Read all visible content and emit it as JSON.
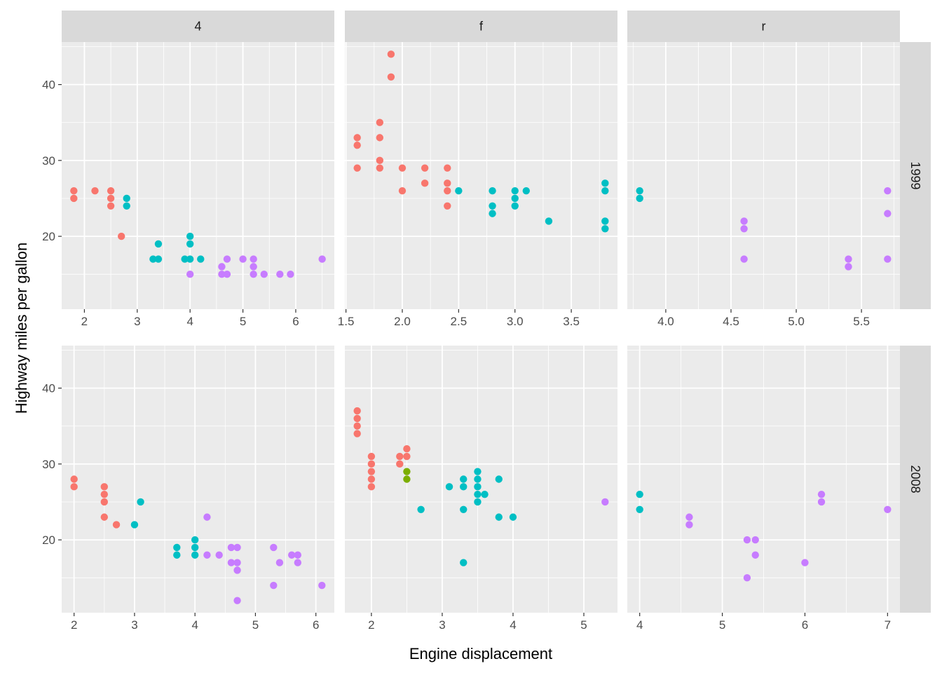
{
  "chart_data": {
    "type": "scatter",
    "xlabel": "Engine displacement",
    "ylabel": "Highway miles per gallon",
    "facet_cols": [
      "4",
      "f",
      "r"
    ],
    "facet_rows": [
      "1999",
      "2008"
    ],
    "ylim": [
      10.4,
      45.6
    ],
    "y_ticks": [
      20,
      30,
      40
    ],
    "y_tick_labels": [
      "20",
      "30",
      "40"
    ],
    "colors": {
      "A": "#F8766D",
      "B": "#7CAE00",
      "C": "#00BFC4",
      "D": "#C77CFF"
    },
    "panels": [
      {
        "row": "1999",
        "col": "4",
        "xlim": [
          1.57,
          6.73
        ],
        "x_ticks": [
          2,
          3,
          4,
          5,
          6
        ],
        "x_tick_labels": [
          "2",
          "3",
          "4",
          "5",
          "6"
        ],
        "points": [
          {
            "x": 1.8,
            "y": 26,
            "g": "A"
          },
          {
            "x": 1.8,
            "y": 25,
            "g": "A"
          },
          {
            "x": 2.2,
            "y": 26,
            "g": "A"
          },
          {
            "x": 2.5,
            "y": 26,
            "g": "A"
          },
          {
            "x": 2.5,
            "y": 25,
            "g": "A"
          },
          {
            "x": 2.5,
            "y": 24,
            "g": "A"
          },
          {
            "x": 2.7,
            "y": 20,
            "g": "A"
          },
          {
            "x": 2.8,
            "y": 25,
            "g": "C"
          },
          {
            "x": 2.8,
            "y": 24,
            "g": "C"
          },
          {
            "x": 3.3,
            "y": 17,
            "g": "C"
          },
          {
            "x": 3.4,
            "y": 19,
            "g": "C"
          },
          {
            "x": 3.4,
            "y": 17,
            "g": "C"
          },
          {
            "x": 3.9,
            "y": 17,
            "g": "C"
          },
          {
            "x": 4.0,
            "y": 20,
            "g": "C"
          },
          {
            "x": 4.0,
            "y": 19,
            "g": "C"
          },
          {
            "x": 4.0,
            "y": 17,
            "g": "C"
          },
          {
            "x": 4.2,
            "y": 17,
            "g": "C"
          },
          {
            "x": 4.0,
            "y": 15,
            "g": "D"
          },
          {
            "x": 4.6,
            "y": 16,
            "g": "D"
          },
          {
            "x": 4.6,
            "y": 15,
            "g": "D"
          },
          {
            "x": 4.7,
            "y": 17,
            "g": "D"
          },
          {
            "x": 4.7,
            "y": 15,
            "g": "D"
          },
          {
            "x": 5.0,
            "y": 17,
            "g": "D"
          },
          {
            "x": 5.2,
            "y": 17,
            "g": "D"
          },
          {
            "x": 5.2,
            "y": 16,
            "g": "D"
          },
          {
            "x": 5.2,
            "y": 15,
            "g": "D"
          },
          {
            "x": 5.4,
            "y": 15,
            "g": "D"
          },
          {
            "x": 5.7,
            "y": 15,
            "g": "D"
          },
          {
            "x": 5.9,
            "y": 15,
            "g": "D"
          },
          {
            "x": 6.5,
            "y": 17,
            "g": "D"
          }
        ]
      },
      {
        "row": "1999",
        "col": "f",
        "xlim": [
          1.49,
          3.91
        ],
        "x_ticks": [
          1.5,
          2.0,
          2.5,
          3.0,
          3.5
        ],
        "x_tick_labels": [
          "1.5",
          "2.0",
          "2.5",
          "3.0",
          "3.5"
        ],
        "points": [
          {
            "x": 1.6,
            "y": 33,
            "g": "A"
          },
          {
            "x": 1.6,
            "y": 32,
            "g": "A"
          },
          {
            "x": 1.6,
            "y": 29,
            "g": "A"
          },
          {
            "x": 1.8,
            "y": 35,
            "g": "A"
          },
          {
            "x": 1.8,
            "y": 33,
            "g": "A"
          },
          {
            "x": 1.8,
            "y": 30,
            "g": "A"
          },
          {
            "x": 1.8,
            "y": 29,
            "g": "A"
          },
          {
            "x": 1.9,
            "y": 44,
            "g": "A"
          },
          {
            "x": 1.9,
            "y": 41,
            "g": "A"
          },
          {
            "x": 2.0,
            "y": 29,
            "g": "A"
          },
          {
            "x": 2.0,
            "y": 26,
            "g": "A"
          },
          {
            "x": 2.2,
            "y": 29,
            "g": "A"
          },
          {
            "x": 2.2,
            "y": 27,
            "g": "A"
          },
          {
            "x": 2.4,
            "y": 29,
            "g": "A"
          },
          {
            "x": 2.4,
            "y": 27,
            "g": "A"
          },
          {
            "x": 2.4,
            "y": 26,
            "g": "A"
          },
          {
            "x": 2.4,
            "y": 24,
            "g": "A"
          },
          {
            "x": 2.5,
            "y": 26,
            "g": "C"
          },
          {
            "x": 2.8,
            "y": 26,
            "g": "C"
          },
          {
            "x": 2.8,
            "y": 24,
            "g": "C"
          },
          {
            "x": 2.8,
            "y": 23,
            "g": "C"
          },
          {
            "x": 3.0,
            "y": 26,
            "g": "C"
          },
          {
            "x": 3.0,
            "y": 25,
            "g": "C"
          },
          {
            "x": 3.0,
            "y": 24,
            "g": "C"
          },
          {
            "x": 3.1,
            "y": 26,
            "g": "C"
          },
          {
            "x": 3.3,
            "y": 22,
            "g": "C"
          },
          {
            "x": 3.8,
            "y": 27,
            "g": "C"
          },
          {
            "x": 3.8,
            "y": 26,
            "g": "C"
          },
          {
            "x": 3.8,
            "y": 22,
            "g": "C"
          },
          {
            "x": 3.8,
            "y": 21,
            "g": "C"
          }
        ]
      },
      {
        "row": "1999",
        "col": "r",
        "xlim": [
          3.705,
          5.795
        ],
        "x_ticks": [
          4.0,
          4.5,
          5.0,
          5.5
        ],
        "x_tick_labels": [
          "4.0",
          "4.5",
          "5.0",
          "5.5"
        ],
        "points": [
          {
            "x": 3.8,
            "y": 26,
            "g": "C"
          },
          {
            "x": 3.8,
            "y": 25,
            "g": "C"
          },
          {
            "x": 4.6,
            "y": 22,
            "g": "D"
          },
          {
            "x": 4.6,
            "y": 21,
            "g": "D"
          },
          {
            "x": 4.6,
            "y": 17,
            "g": "D"
          },
          {
            "x": 5.4,
            "y": 17,
            "g": "D"
          },
          {
            "x": 5.4,
            "y": 16,
            "g": "D"
          },
          {
            "x": 5.7,
            "y": 26,
            "g": "D"
          },
          {
            "x": 5.7,
            "y": 23,
            "g": "D"
          },
          {
            "x": 5.7,
            "y": 17,
            "g": "D"
          }
        ]
      },
      {
        "row": "2008",
        "col": "4",
        "xlim": [
          1.795,
          6.305
        ],
        "x_ticks": [
          2,
          3,
          4,
          5,
          6
        ],
        "x_tick_labels": [
          "2",
          "3",
          "4",
          "5",
          "6"
        ],
        "points": [
          {
            "x": 2.0,
            "y": 28,
            "g": "A"
          },
          {
            "x": 2.0,
            "y": 27,
            "g": "A"
          },
          {
            "x": 2.5,
            "y": 27,
            "g": "A"
          },
          {
            "x": 2.5,
            "y": 26,
            "g": "A"
          },
          {
            "x": 2.5,
            "y": 25,
            "g": "A"
          },
          {
            "x": 2.5,
            "y": 23,
            "g": "A"
          },
          {
            "x": 2.7,
            "y": 22,
            "g": "A"
          },
          {
            "x": 3.0,
            "y": 22,
            "g": "C"
          },
          {
            "x": 3.1,
            "y": 25,
            "g": "C"
          },
          {
            "x": 3.7,
            "y": 19,
            "g": "C"
          },
          {
            "x": 3.7,
            "y": 18,
            "g": "C"
          },
          {
            "x": 4.0,
            "y": 20,
            "g": "C"
          },
          {
            "x": 4.0,
            "y": 19,
            "g": "C"
          },
          {
            "x": 4.0,
            "y": 18,
            "g": "C"
          },
          {
            "x": 4.2,
            "y": 23,
            "g": "D"
          },
          {
            "x": 4.2,
            "y": 18,
            "g": "D"
          },
          {
            "x": 4.4,
            "y": 18,
            "g": "D"
          },
          {
            "x": 4.6,
            "y": 19,
            "g": "D"
          },
          {
            "x": 4.6,
            "y": 17,
            "g": "D"
          },
          {
            "x": 4.7,
            "y": 19,
            "g": "D"
          },
          {
            "x": 4.7,
            "y": 17,
            "g": "D"
          },
          {
            "x": 4.7,
            "y": 16,
            "g": "D"
          },
          {
            "x": 4.7,
            "y": 12,
            "g": "D"
          },
          {
            "x": 5.3,
            "y": 19,
            "g": "D"
          },
          {
            "x": 5.3,
            "y": 14,
            "g": "D"
          },
          {
            "x": 5.4,
            "y": 17,
            "g": "D"
          },
          {
            "x": 5.6,
            "y": 18,
            "g": "D"
          },
          {
            "x": 5.7,
            "y": 18,
            "g": "D"
          },
          {
            "x": 5.7,
            "y": 17,
            "g": "D"
          },
          {
            "x": 6.1,
            "y": 14,
            "g": "D"
          }
        ]
      },
      {
        "row": "2008",
        "col": "f",
        "xlim": [
          1.625,
          5.475
        ],
        "x_ticks": [
          2,
          3,
          4,
          5
        ],
        "x_tick_labels": [
          "2",
          "3",
          "4",
          "5"
        ],
        "points": [
          {
            "x": 1.8,
            "y": 37,
            "g": "A"
          },
          {
            "x": 1.8,
            "y": 36,
            "g": "A"
          },
          {
            "x": 1.8,
            "y": 35,
            "g": "A"
          },
          {
            "x": 1.8,
            "y": 34,
            "g": "A"
          },
          {
            "x": 2.0,
            "y": 31,
            "g": "A"
          },
          {
            "x": 2.0,
            "y": 30,
            "g": "A"
          },
          {
            "x": 2.0,
            "y": 29,
            "g": "A"
          },
          {
            "x": 2.0,
            "y": 28,
            "g": "A"
          },
          {
            "x": 2.0,
            "y": 27,
            "g": "A"
          },
          {
            "x": 2.4,
            "y": 31,
            "g": "A"
          },
          {
            "x": 2.4,
            "y": 30,
            "g": "A"
          },
          {
            "x": 2.5,
            "y": 32,
            "g": "A"
          },
          {
            "x": 2.5,
            "y": 31,
            "g": "A"
          },
          {
            "x": 2.5,
            "y": 29,
            "g": "B"
          },
          {
            "x": 2.5,
            "y": 28,
            "g": "B"
          },
          {
            "x": 2.7,
            "y": 24,
            "g": "C"
          },
          {
            "x": 3.1,
            "y": 27,
            "g": "C"
          },
          {
            "x": 3.3,
            "y": 28,
            "g": "C"
          },
          {
            "x": 3.3,
            "y": 27,
            "g": "C"
          },
          {
            "x": 3.3,
            "y": 24,
            "g": "C"
          },
          {
            "x": 3.3,
            "y": 17,
            "g": "C"
          },
          {
            "x": 3.5,
            "y": 29,
            "g": "C"
          },
          {
            "x": 3.5,
            "y": 28,
            "g": "C"
          },
          {
            "x": 3.5,
            "y": 27,
            "g": "C"
          },
          {
            "x": 3.5,
            "y": 26,
            "g": "C"
          },
          {
            "x": 3.5,
            "y": 25,
            "g": "C"
          },
          {
            "x": 3.6,
            "y": 26,
            "g": "C"
          },
          {
            "x": 3.8,
            "y": 28,
            "g": "C"
          },
          {
            "x": 3.8,
            "y": 23,
            "g": "C"
          },
          {
            "x": 4.0,
            "y": 23,
            "g": "C"
          },
          {
            "x": 5.3,
            "y": 25,
            "g": "D"
          }
        ]
      },
      {
        "row": "2008",
        "col": "r",
        "xlim": [
          3.85,
          7.15
        ],
        "x_ticks": [
          4,
          5,
          6,
          7
        ],
        "x_tick_labels": [
          "4",
          "5",
          "6",
          "7"
        ],
        "points": [
          {
            "x": 4.0,
            "y": 26,
            "g": "C"
          },
          {
            "x": 4.0,
            "y": 24,
            "g": "C"
          },
          {
            "x": 4.6,
            "y": 23,
            "g": "D"
          },
          {
            "x": 4.6,
            "y": 22,
            "g": "D"
          },
          {
            "x": 5.3,
            "y": 20,
            "g": "D"
          },
          {
            "x": 5.3,
            "y": 15,
            "g": "D"
          },
          {
            "x": 5.4,
            "y": 20,
            "g": "D"
          },
          {
            "x": 5.4,
            "y": 18,
            "g": "D"
          },
          {
            "x": 6.0,
            "y": 17,
            "g": "D"
          },
          {
            "x": 6.2,
            "y": 26,
            "g": "D"
          },
          {
            "x": 6.2,
            "y": 25,
            "g": "D"
          },
          {
            "x": 7.0,
            "y": 24,
            "g": "D"
          }
        ]
      }
    ]
  }
}
